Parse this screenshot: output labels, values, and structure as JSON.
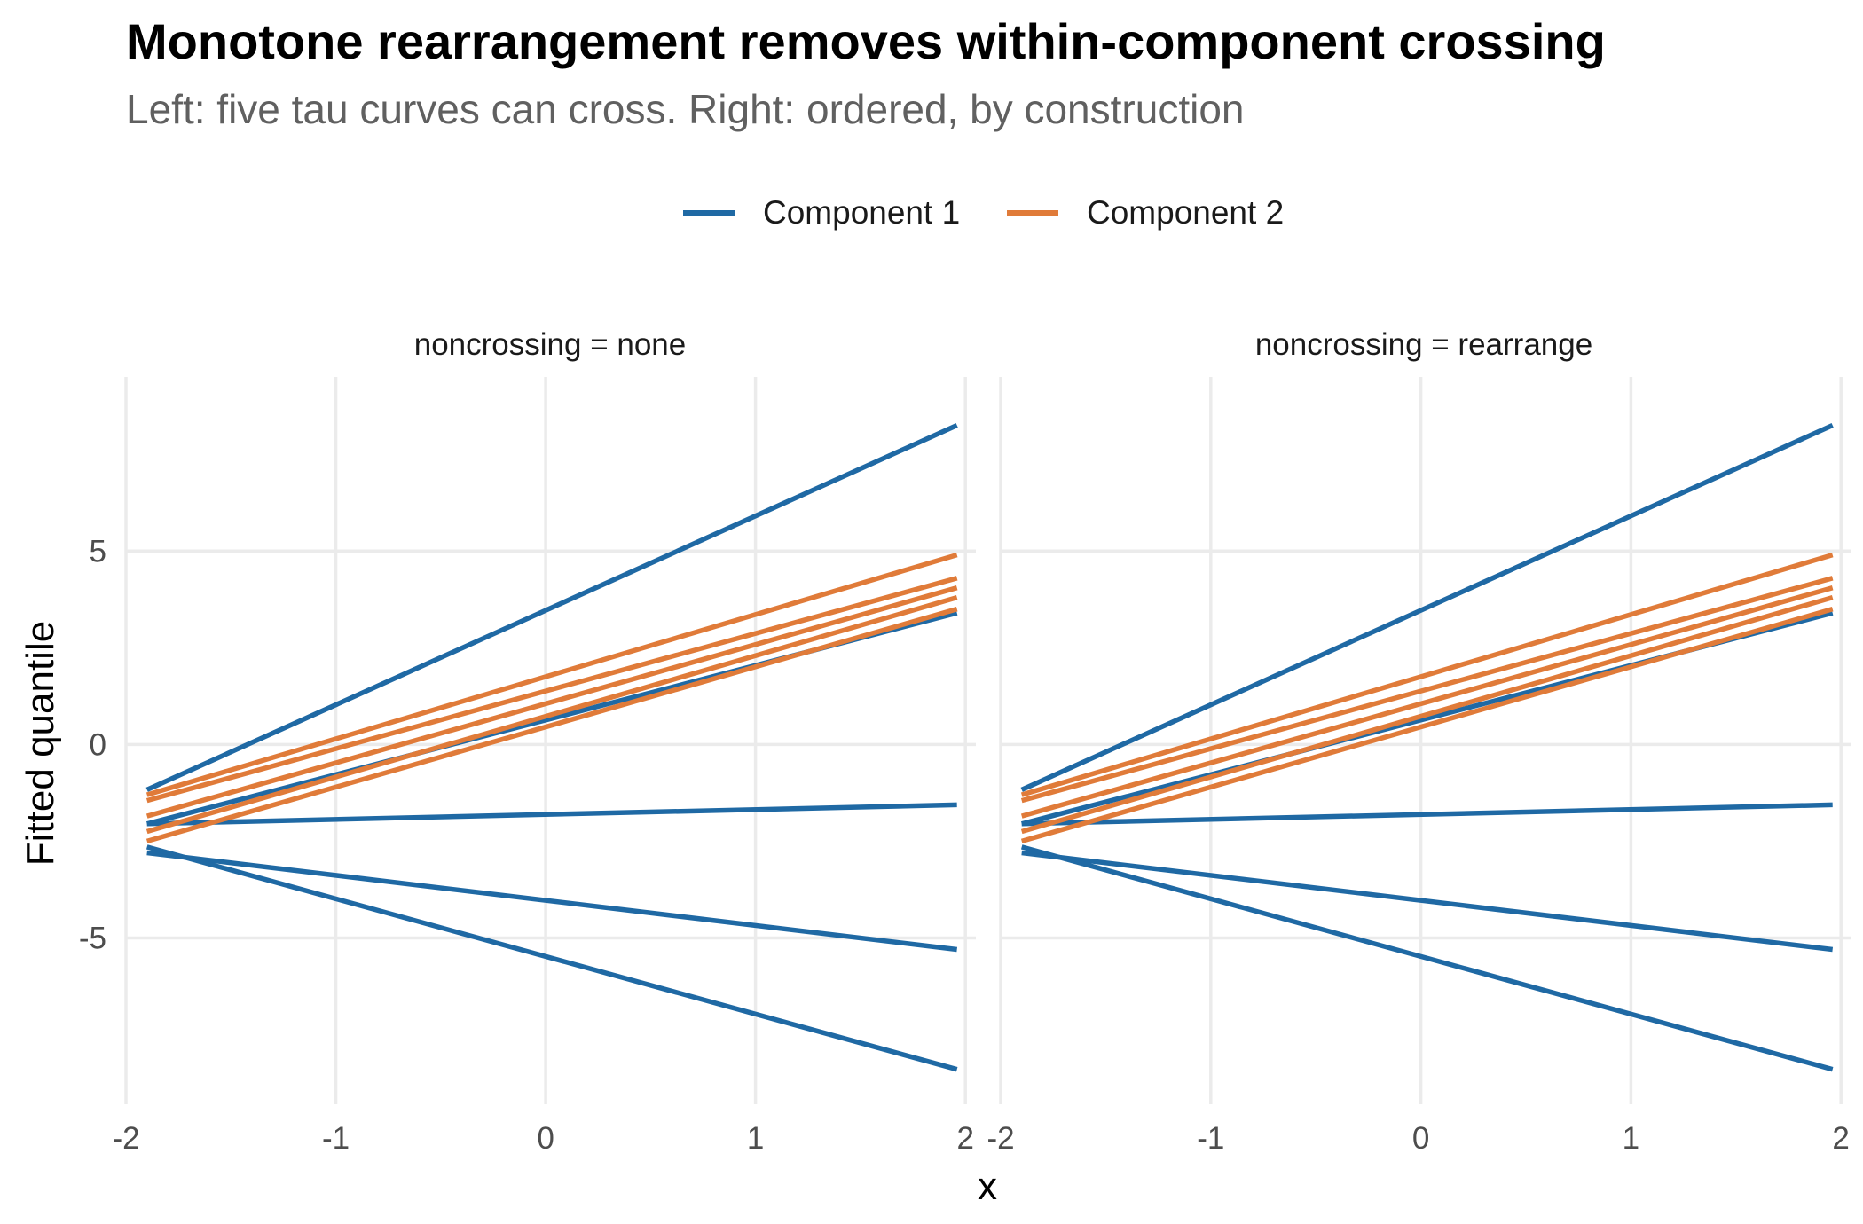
{
  "chart_data": {
    "type": "line",
    "title": "Monotone rearrangement removes within-component crossing",
    "subtitle": "Left: five tau curves can cross. Right: ordered, by construction",
    "xlabel": "x",
    "ylabel": "Fitted quantile",
    "xlim": [
      -2.0,
      2.05
    ],
    "ylim": [
      -9.3,
      9.5
    ],
    "x_ticks": [
      -2,
      -1,
      0,
      1,
      2
    ],
    "x_tick_labels": [
      "-2",
      "-1",
      "0",
      "1",
      "2"
    ],
    "y_ticks": [
      -5,
      0,
      5
    ],
    "y_tick_labels": [
      "-5",
      "0",
      "5"
    ],
    "grid": true,
    "legend_position": "top",
    "legend": [
      {
        "label": "Component 1",
        "color": "#1F69A4"
      },
      {
        "label": "Component 2",
        "color": "#E07B39"
      }
    ],
    "panels": [
      {
        "strip": "noncrossing = none",
        "series": [
          {
            "component": 1,
            "x": [
              -1.9,
              1.96
            ],
            "y": [
              -1.17,
              8.25
            ]
          },
          {
            "component": 1,
            "x": [
              -1.9,
              1.96
            ],
            "y": [
              -2.05,
              3.4
            ]
          },
          {
            "component": 1,
            "x": [
              -1.9,
              1.96
            ],
            "y": [
              -2.05,
              -1.56
            ]
          },
          {
            "component": 1,
            "x": [
              -1.9,
              1.96
            ],
            "y": [
              -2.8,
              -5.3
            ]
          },
          {
            "component": 1,
            "x": [
              -1.9,
              1.96
            ],
            "y": [
              -2.65,
              -8.4
            ]
          },
          {
            "component": 2,
            "x": [
              -1.9,
              1.96
            ],
            "y": [
              -1.3,
              4.9
            ]
          },
          {
            "component": 2,
            "x": [
              -1.9,
              1.96
            ],
            "y": [
              -1.45,
              4.3
            ]
          },
          {
            "component": 2,
            "x": [
              -1.9,
              1.96
            ],
            "y": [
              -1.85,
              4.05
            ]
          },
          {
            "component": 2,
            "x": [
              -1.9,
              1.96
            ],
            "y": [
              -2.25,
              3.8
            ]
          },
          {
            "component": 2,
            "x": [
              -1.9,
              1.96
            ],
            "y": [
              -2.5,
              3.5
            ]
          }
        ]
      },
      {
        "strip": "noncrossing = rearrange",
        "series": [
          {
            "component": 1,
            "x": [
              -1.9,
              1.96
            ],
            "y": [
              -1.17,
              8.25
            ]
          },
          {
            "component": 1,
            "x": [
              -1.9,
              1.96
            ],
            "y": [
              -2.05,
              3.4
            ]
          },
          {
            "component": 1,
            "x": [
              -1.9,
              1.96
            ],
            "y": [
              -2.05,
              -1.56
            ]
          },
          {
            "component": 1,
            "x": [
              -1.9,
              1.96
            ],
            "y": [
              -2.8,
              -5.3
            ]
          },
          {
            "component": 1,
            "x": [
              -1.9,
              1.96
            ],
            "y": [
              -2.65,
              -8.4
            ]
          },
          {
            "component": 2,
            "x": [
              -1.9,
              1.96
            ],
            "y": [
              -1.3,
              4.9
            ]
          },
          {
            "component": 2,
            "x": [
              -1.9,
              1.96
            ],
            "y": [
              -1.45,
              4.3
            ]
          },
          {
            "component": 2,
            "x": [
              -1.9,
              1.96
            ],
            "y": [
              -1.85,
              4.05
            ]
          },
          {
            "component": 2,
            "x": [
              -1.9,
              1.96
            ],
            "y": [
              -2.25,
              3.8
            ]
          },
          {
            "component": 2,
            "x": [
              -1.9,
              1.96
            ],
            "y": [
              -2.5,
              3.5
            ]
          }
        ]
      }
    ]
  }
}
